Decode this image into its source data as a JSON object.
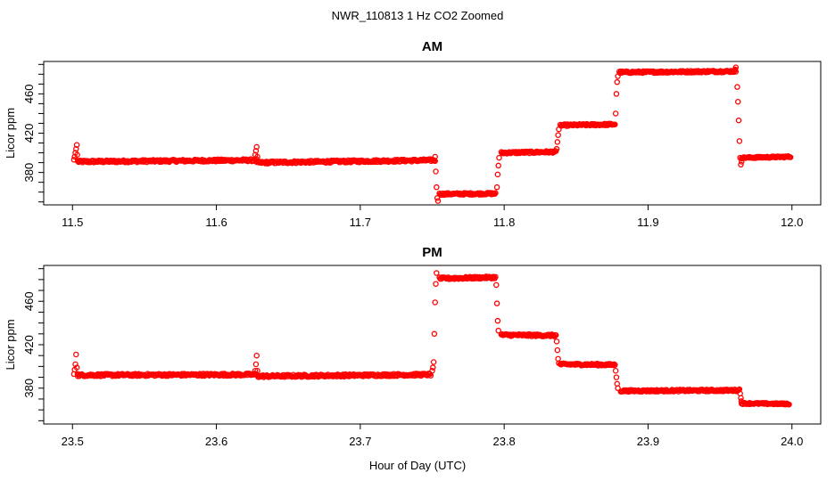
{
  "chart_data": {
    "type": "scatter",
    "title": "NWR_110813  1 Hz CO2 Zoomed",
    "xlabel": "Hour of Day (UTC)",
    "point_color": "#ff0000",
    "panels": [
      {
        "id": "am",
        "title": "AM",
        "ylabel": "Licor ppm",
        "xlim": [
          11.48,
          12.02
        ],
        "ylim": [
          347,
          493
        ],
        "xticks": [
          11.5,
          11.6,
          11.7,
          11.8,
          11.9,
          12.0
        ],
        "xtick_labels": [
          "11.5",
          "11.6",
          "11.7",
          "11.8",
          "11.9",
          "12.0"
        ],
        "yticks": [
          380,
          420,
          460
        ],
        "ytick_labels": [
          "380",
          "420",
          "460"
        ],
        "segments": [
          {
            "x": [
              11.5037,
              11.628
            ],
            "y": [
              391,
              392.5
            ],
            "noise": 1.2
          },
          {
            "x": [
              11.628,
              11.752
            ],
            "y": [
              390,
              392.5
            ],
            "noise": 1.2
          },
          {
            "x": [
              11.755,
              11.794
            ],
            "y": [
              358,
              358.5
            ],
            "noise": 1.0
          },
          {
            "x": [
              11.798,
              11.836
            ],
            "y": [
              400,
              401
            ],
            "noise": 1.0
          },
          {
            "x": [
              11.839,
              11.877
            ],
            "y": [
              428,
              429
            ],
            "noise": 1.0
          },
          {
            "x": [
              11.88,
              11.961
            ],
            "y": [
              482,
              483
            ],
            "noise": 1.0
          },
          {
            "x": [
              11.965,
              11.999
            ],
            "y": [
              395,
              396
            ],
            "noise": 0.8
          }
        ],
        "transients": [
          {
            "x": 11.501,
            "y": 393
          },
          {
            "x": 11.5015,
            "y": 396
          },
          {
            "x": 11.502,
            "y": 400
          },
          {
            "x": 11.5025,
            "y": 404
          },
          {
            "x": 11.503,
            "y": 408
          },
          {
            "x": 11.5033,
            "y": 398
          },
          {
            "x": 11.5036,
            "y": 392
          },
          {
            "x": 11.627,
            "y": 398
          },
          {
            "x": 11.6275,
            "y": 402
          },
          {
            "x": 11.628,
            "y": 406
          },
          {
            "x": 11.6285,
            "y": 396
          },
          {
            "x": 11.752,
            "y": 396
          },
          {
            "x": 11.7525,
            "y": 381
          },
          {
            "x": 11.753,
            "y": 365
          },
          {
            "x": 11.7535,
            "y": 354
          },
          {
            "x": 11.754,
            "y": 351
          },
          {
            "x": 11.795,
            "y": 365
          },
          {
            "x": 11.7955,
            "y": 378
          },
          {
            "x": 11.796,
            "y": 387
          },
          {
            "x": 11.7965,
            "y": 395
          },
          {
            "x": 11.8365,
            "y": 404
          },
          {
            "x": 11.837,
            "y": 411
          },
          {
            "x": 11.8375,
            "y": 418
          },
          {
            "x": 11.838,
            "y": 424
          },
          {
            "x": 11.8775,
            "y": 440
          },
          {
            "x": 11.878,
            "y": 460
          },
          {
            "x": 11.8785,
            "y": 472
          },
          {
            "x": 11.879,
            "y": 478
          },
          {
            "x": 11.9605,
            "y": 485
          },
          {
            "x": 11.961,
            "y": 487
          },
          {
            "x": 11.962,
            "y": 467
          },
          {
            "x": 11.9625,
            "y": 452
          },
          {
            "x": 11.963,
            "y": 433
          },
          {
            "x": 11.9635,
            "y": 412
          },
          {
            "x": 11.964,
            "y": 395
          },
          {
            "x": 11.9645,
            "y": 388
          },
          {
            "x": 11.965,
            "y": 391
          }
        ]
      },
      {
        "id": "pm",
        "title": "PM",
        "ylabel": "Licor ppm",
        "xlim": [
          23.48,
          24.02
        ],
        "ylim": [
          347,
          493
        ],
        "xticks": [
          23.5,
          23.6,
          23.7,
          23.8,
          23.9,
          24.0
        ],
        "xtick_labels": [
          "23.5",
          "23.6",
          "23.7",
          "23.8",
          "23.9",
          "24.0"
        ],
        "yticks": [
          380,
          420,
          460
        ],
        "ytick_labels": [
          "380",
          "420",
          "460"
        ],
        "segments": [
          {
            "x": [
              23.5037,
              23.628
            ],
            "y": [
              392,
              392.5
            ],
            "noise": 1.1
          },
          {
            "x": [
              23.629,
              23.749
            ],
            "y": [
              391,
              392.5
            ],
            "noise": 1.1
          },
          {
            "x": [
              23.755,
              23.794
            ],
            "y": [
              481,
              482
            ],
            "noise": 1.0
          },
          {
            "x": [
              23.798,
              23.836
            ],
            "y": [
              429,
              428.5
            ],
            "noise": 1.0
          },
          {
            "x": [
              23.839,
              23.877
            ],
            "y": [
              402,
              401.5
            ],
            "noise": 0.9
          },
          {
            "x": [
              23.881,
              23.963
            ],
            "y": [
              377.5,
              378
            ],
            "noise": 0.9
          },
          {
            "x": [
              23.965,
              23.998
            ],
            "y": [
              366,
              365.5
            ],
            "noise": 0.7
          }
        ],
        "transients": [
          {
            "x": 23.501,
            "y": 393
          },
          {
            "x": 23.5015,
            "y": 397
          },
          {
            "x": 23.502,
            "y": 402
          },
          {
            "x": 23.5025,
            "y": 411
          },
          {
            "x": 23.503,
            "y": 399
          },
          {
            "x": 23.5035,
            "y": 393
          },
          {
            "x": 23.627,
            "y": 396
          },
          {
            "x": 23.6275,
            "y": 402
          },
          {
            "x": 23.628,
            "y": 410
          },
          {
            "x": 23.6285,
            "y": 396
          },
          {
            "x": 23.75,
            "y": 396
          },
          {
            "x": 23.7505,
            "y": 399
          },
          {
            "x": 23.751,
            "y": 404
          },
          {
            "x": 23.7515,
            "y": 430
          },
          {
            "x": 23.752,
            "y": 459
          },
          {
            "x": 23.7525,
            "y": 476
          },
          {
            "x": 23.753,
            "y": 486
          },
          {
            "x": 23.7945,
            "y": 475
          },
          {
            "x": 23.795,
            "y": 458
          },
          {
            "x": 23.7955,
            "y": 442
          },
          {
            "x": 23.796,
            "y": 433
          },
          {
            "x": 23.8365,
            "y": 423
          },
          {
            "x": 23.837,
            "y": 415
          },
          {
            "x": 23.8375,
            "y": 407
          },
          {
            "x": 23.838,
            "y": 403
          },
          {
            "x": 23.8775,
            "y": 396
          },
          {
            "x": 23.878,
            "y": 390
          },
          {
            "x": 23.8785,
            "y": 384
          },
          {
            "x": 23.879,
            "y": 380
          },
          {
            "x": 23.9635,
            "y": 379
          },
          {
            "x": 23.964,
            "y": 375
          },
          {
            "x": 23.9645,
            "y": 371
          },
          {
            "x": 23.9648,
            "y": 368
          }
        ]
      }
    ]
  }
}
